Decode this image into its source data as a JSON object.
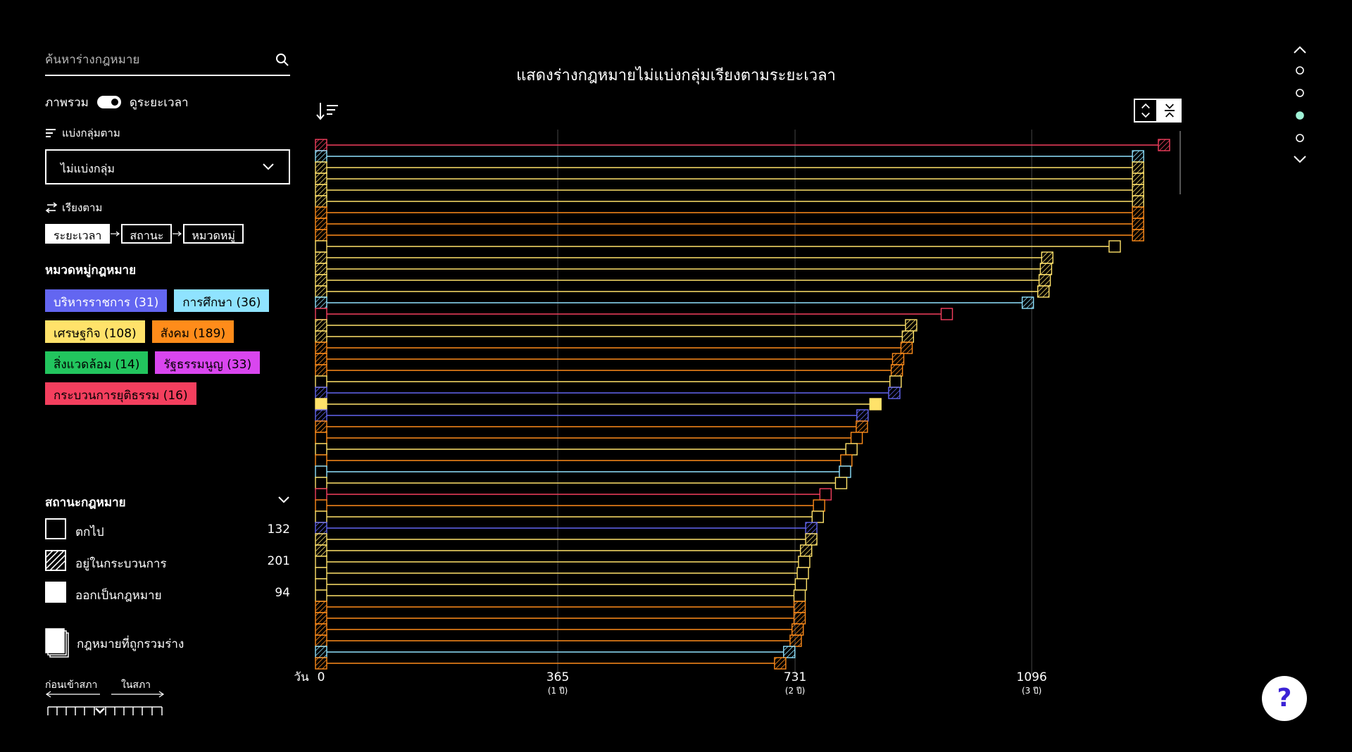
{
  "sidebar": {
    "search_placeholder": "ค้นหาร่างกฎหมาย",
    "toggle_left": "ภาพรวม",
    "toggle_right": "ดูระยะเวลา",
    "group_label": "แบ่งกลุ่มตาม",
    "group_value": "ไม่แบ่งกลุ่ม",
    "sort_label": "เรียงตาม",
    "sort_chips": [
      "ระยะเวลา",
      "สถานะ",
      "หมวดหมู่"
    ],
    "category_title": "หมวดหมู่กฎหมาย",
    "categories": [
      {
        "label": "บริหารราชการ (31)",
        "color": "#6366f1"
      },
      {
        "label": "การศึกษา (36)",
        "color": "#8fe3ff"
      },
      {
        "label": "เศรษฐกิจ (108)",
        "color": "#ffe26a"
      },
      {
        "label": "สังคม (189)",
        "color": "#ff8c1a"
      },
      {
        "label": "สิ่งแวดล้อม (14)",
        "color": "#22c55e"
      },
      {
        "label": "รัฐธรรมนูญ (33)",
        "color": "#d946ef"
      },
      {
        "label": "กระบวนการยุติธรรม (16)",
        "color": "#f43f5e"
      }
    ],
    "status_title": "สถานะกฎหมาย",
    "statuses": [
      {
        "label": "ตกไป",
        "count": "132"
      },
      {
        "label": "อยู่ในกระบวนการ",
        "count": "201"
      },
      {
        "label": "ออกเป็นกฎหมาย",
        "count": "94"
      }
    ],
    "merged_label": "กฎหมายที่ถูกรวมร่าง",
    "timeline_before": "ก่อนเข้าสภา",
    "timeline_in": "ในสภา"
  },
  "chart_title": "แสดงร่างกฎหมายไม่แบ่งกลุ่มเรียงตามระยะเวลา",
  "help_label": "?",
  "icons": [
    "search-icon",
    "list-icon",
    "swap-icon",
    "chevron-down-icon",
    "sort-icon",
    "expand-icon",
    "collapse-icon",
    "chevron-up-icon",
    "help-icon"
  ],
  "chart_data": {
    "type": "bar",
    "orientation": "horizontal",
    "x_unit_label": "วัน",
    "xlim": [
      0,
      1300
    ],
    "x_ticks": [
      {
        "value": 0,
        "label": "0",
        "sub": ""
      },
      {
        "value": 365,
        "label": "365",
        "sub": "(1 ปี)"
      },
      {
        "value": 731,
        "label": "731",
        "sub": "(2 ปี)"
      },
      {
        "value": 1096,
        "label": "1096",
        "sub": "(3 ปี)"
      }
    ],
    "colors": {
      "admin": "#6366f1",
      "education": "#8fe3ff",
      "economy": "#ffe26a",
      "social": "#ff8c1a",
      "environment": "#22c55e",
      "constitution": "#d946ef",
      "justice": "#f43f5e"
    },
    "rows": [
      {
        "days": 1300,
        "cat": "justice",
        "status": "inprocess"
      },
      {
        "days": 1260,
        "cat": "education",
        "status": "inprocess"
      },
      {
        "days": 1260,
        "cat": "economy",
        "status": "inprocess"
      },
      {
        "days": 1260,
        "cat": "economy",
        "status": "inprocess"
      },
      {
        "days": 1260,
        "cat": "economy",
        "status": "inprocess"
      },
      {
        "days": 1260,
        "cat": "economy",
        "status": "inprocess"
      },
      {
        "days": 1260,
        "cat": "social",
        "status": "inprocess"
      },
      {
        "days": 1260,
        "cat": "social",
        "status": "inprocess"
      },
      {
        "days": 1260,
        "cat": "social",
        "status": "inprocess"
      },
      {
        "days": 1224,
        "cat": "economy",
        "status": "dropped"
      },
      {
        "days": 1120,
        "cat": "economy",
        "status": "inprocess"
      },
      {
        "days": 1118,
        "cat": "economy",
        "status": "inprocess"
      },
      {
        "days": 1116,
        "cat": "economy",
        "status": "inprocess"
      },
      {
        "days": 1114,
        "cat": "economy",
        "status": "inprocess"
      },
      {
        "days": 1090,
        "cat": "education",
        "status": "inprocess"
      },
      {
        "days": 965,
        "cat": "justice",
        "status": "dropped"
      },
      {
        "days": 910,
        "cat": "economy",
        "status": "inprocess"
      },
      {
        "days": 905,
        "cat": "economy",
        "status": "inprocess"
      },
      {
        "days": 903,
        "cat": "social",
        "status": "inprocess"
      },
      {
        "days": 890,
        "cat": "social",
        "status": "inprocess"
      },
      {
        "days": 888,
        "cat": "social",
        "status": "inprocess"
      },
      {
        "days": 886,
        "cat": "economy",
        "status": "dropped"
      },
      {
        "days": 884,
        "cat": "admin",
        "status": "inprocess"
      },
      {
        "days": 855,
        "cat": "economy",
        "status": "passed"
      },
      {
        "days": 835,
        "cat": "admin",
        "status": "inprocess"
      },
      {
        "days": 834,
        "cat": "social",
        "status": "inprocess"
      },
      {
        "days": 826,
        "cat": "social",
        "status": "dropped"
      },
      {
        "days": 818,
        "cat": "economy",
        "status": "dropped"
      },
      {
        "days": 810,
        "cat": "social",
        "status": "dropped"
      },
      {
        "days": 808,
        "cat": "education",
        "status": "dropped"
      },
      {
        "days": 802,
        "cat": "economy",
        "status": "dropped"
      },
      {
        "days": 778,
        "cat": "justice",
        "status": "dropped"
      },
      {
        "days": 768,
        "cat": "social",
        "status": "dropped"
      },
      {
        "days": 766,
        "cat": "economy",
        "status": "dropped"
      },
      {
        "days": 756,
        "cat": "admin",
        "status": "inprocess"
      },
      {
        "days": 756,
        "cat": "economy",
        "status": "inprocess"
      },
      {
        "days": 748,
        "cat": "economy",
        "status": "inprocess"
      },
      {
        "days": 745,
        "cat": "economy",
        "status": "dropped"
      },
      {
        "days": 743,
        "cat": "economy",
        "status": "dropped"
      },
      {
        "days": 740,
        "cat": "economy",
        "status": "dropped"
      },
      {
        "days": 738,
        "cat": "economy",
        "status": "dropped"
      },
      {
        "days": 738,
        "cat": "social",
        "status": "inprocess"
      },
      {
        "days": 738,
        "cat": "social",
        "status": "inprocess"
      },
      {
        "days": 735,
        "cat": "social",
        "status": "inprocess"
      },
      {
        "days": 732,
        "cat": "social",
        "status": "inprocess"
      },
      {
        "days": 722,
        "cat": "education",
        "status": "inprocess"
      },
      {
        "days": 708,
        "cat": "social",
        "status": "inprocess"
      }
    ]
  }
}
